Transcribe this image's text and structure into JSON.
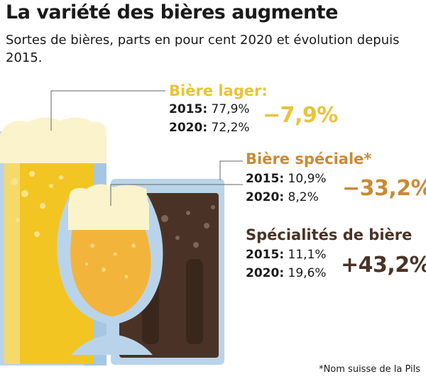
{
  "title": "La variété des bières augmente",
  "subtitle": "Sortes de bières, parts en pour cent 2020 et évolution depuis 2015.",
  "footnote": "*Nom suisse de la Pils",
  "colors": {
    "lager": "#e8c437",
    "speciale": "#c98a35",
    "specialites": "#4a3326",
    "glass": "#b9d4ea"
  },
  "chart_data": {
    "type": "table",
    "title": "La variété des bières augmente",
    "columns": [
      "2015",
      "2020",
      "évolution"
    ],
    "series": [
      {
        "name": "Bière lager:",
        "y2015_label": "2015:",
        "y2015": "77,9%",
        "y2020_label": "2020:",
        "y2020": "72,2%",
        "change": "−7,9%",
        "values": [
          77.9,
          72.2
        ],
        "change_pct": -7.9
      },
      {
        "name": "Bière spéciale*",
        "y2015_label": "2015:",
        "y2015": "10,9%",
        "y2020_label": "2020:",
        "y2020": "8,2%",
        "change": "−33,2%",
        "values": [
          10.9,
          8.2
        ],
        "change_pct": -33.2
      },
      {
        "name": "Spécialités de bière",
        "y2015_label": "2015:",
        "y2015": "11,1%",
        "y2020_label": "2020:",
        "y2020": "19,6%",
        "change": "+43,2%",
        "values": [
          11.1,
          19.6
        ],
        "change_pct": 43.2
      }
    ]
  }
}
